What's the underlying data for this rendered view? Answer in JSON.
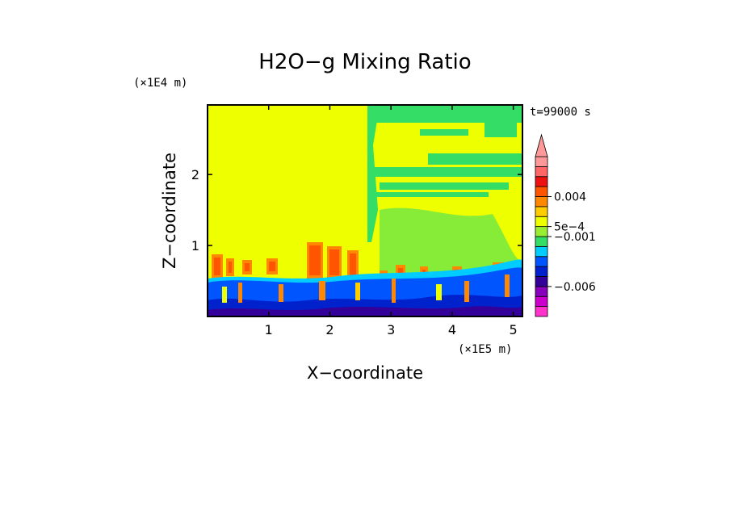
{
  "chart_data": {
    "type": "heatmap",
    "title": "H2O−g Mixing Ratio",
    "xlabel": "X−coordinate",
    "ylabel": "Z−coordinate",
    "x_unit": "(×1E5 m)",
    "y_unit": "(×1E4 m)",
    "time_label": "t=99000 s",
    "xlim": [
      0,
      5.15
    ],
    "ylim": [
      0,
      2.98
    ],
    "x_ticks": [
      {
        "value": 1,
        "label": "1"
      },
      {
        "value": 2,
        "label": "2"
      },
      {
        "value": 3,
        "label": "3"
      },
      {
        "value": 4,
        "label": "4"
      },
      {
        "value": 5,
        "label": "5"
      }
    ],
    "y_ticks": [
      {
        "value": 1,
        "label": "1"
      },
      {
        "value": 2,
        "label": "2"
      }
    ],
    "colorbar": {
      "colors": [
        "#ff33cc",
        "#cc00cc",
        "#8800bb",
        "#330099",
        "#0022cc",
        "#0055ff",
        "#00ccff",
        "#33dd66",
        "#99ee33",
        "#eeff00",
        "#ffcc00",
        "#ff8800",
        "#ff5500",
        "#ee1111",
        "#ff6666",
        "#ff9999"
      ],
      "extend_top": true,
      "labels": [
        {
          "text": "0.004",
          "level": 12
        },
        {
          "text": "5e−4",
          "level": 9
        },
        {
          "text": "−0.001",
          "level": 8
        },
        {
          "text": "−0.006",
          "level": 3
        }
      ]
    },
    "background_color": "#eeff00"
  }
}
